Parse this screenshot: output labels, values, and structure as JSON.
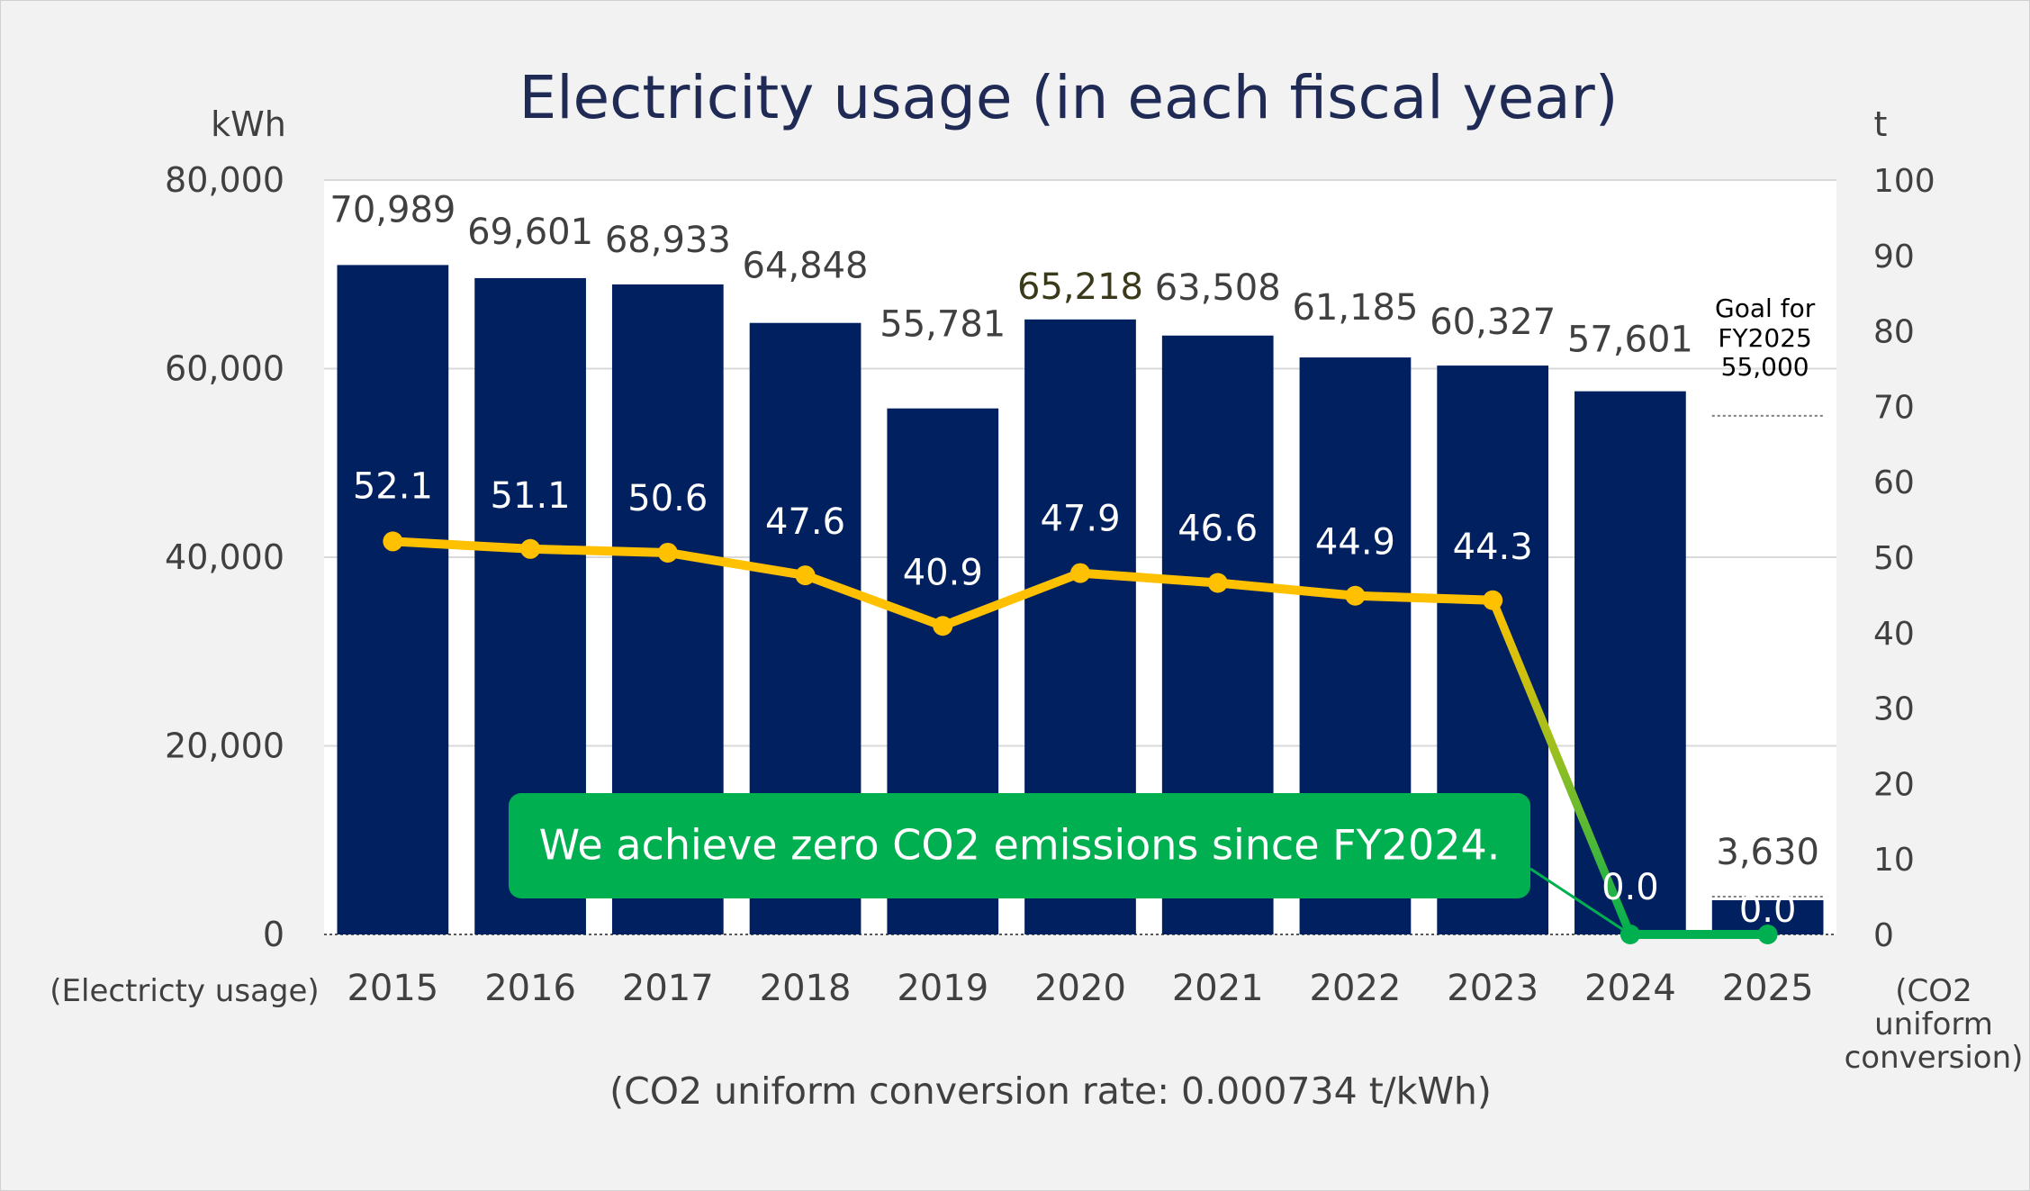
{
  "chart_data": {
    "type": "bar",
    "title": "Electricity usage (in each fiscal year)",
    "categories": [
      "2015",
      "2016",
      "2017",
      "2018",
      "2019",
      "2020",
      "2021",
      "2022",
      "2023",
      "2024",
      "2025"
    ],
    "series": [
      {
        "name": "",
        "type": "bar",
        "axis": "left",
        "color": "#002060",
        "values": [
          70989,
          69601,
          68933,
          64848,
          55781,
          65218,
          63508,
          61185,
          60327,
          57601,
          3630
        ],
        "labels": [
          "70,989",
          "69,601",
          "68,933",
          "64,848",
          "55,781",
          "65,218",
          "63,508",
          "61,185",
          "60,327",
          "57,601",
          "3,630"
        ]
      },
      {
        "name": "",
        "type": "line",
        "axis": "right",
        "color": "#FFC000",
        "zero_color": "#00B050",
        "values": [
          52.1,
          51.1,
          50.6,
          47.6,
          40.9,
          47.9,
          46.6,
          44.9,
          44.3,
          0.0,
          0.0
        ],
        "labels": [
          "52.1",
          "51.1",
          "50.6",
          "47.6",
          "40.9",
          "47.9",
          "46.6",
          "44.9",
          "44.3",
          "0.0",
          "0.0"
        ]
      }
    ],
    "left_axis": {
      "unit": "kWh",
      "label": "(Electricty usage)",
      "ylim": [
        0,
        80000
      ],
      "ticks": [
        "0",
        "20,000",
        "40,000",
        "60,000",
        "80,000"
      ]
    },
    "right_axis": {
      "unit": "t",
      "label_lines": [
        "(CO2",
        "uniform",
        "conversion)"
      ],
      "ylim": [
        0,
        100
      ],
      "ticks": [
        "0",
        "10",
        "20",
        "30",
        "40",
        "50",
        "60",
        "70",
        "80",
        "90",
        "100"
      ]
    },
    "goal": {
      "value": 55000,
      "lines": [
        "Goal for",
        "FY2025",
        "55,000"
      ]
    },
    "callout": "We achieve zero CO2 emissions since FY2024.",
    "footnote": "(CO2 uniform conversion rate: 0.000734 t/kWh)",
    "grid": true,
    "colors": {
      "background": "#f2f2f2",
      "plot": "#ffffff",
      "title": "#1f2a55",
      "text": "#404040",
      "callout_bg": "#00B050"
    }
  }
}
